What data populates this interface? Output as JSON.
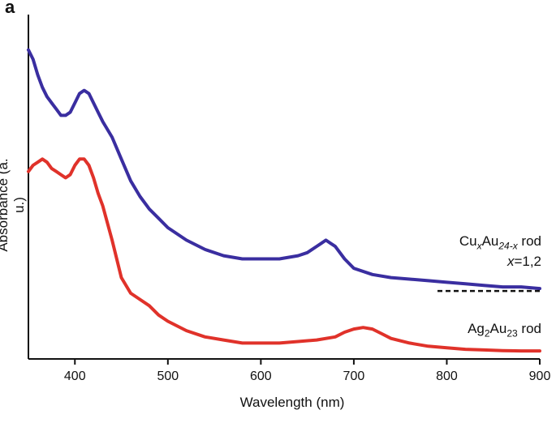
{
  "panel_label": "a",
  "chart_data": {
    "type": "line",
    "xlabel": "Wavelength (nm)",
    "ylabel": "Absorbance (a. u.)",
    "xlim": [
      350,
      900
    ],
    "xticks": [
      400,
      500,
      600,
      700,
      800,
      900
    ],
    "ylim": [
      0,
      1
    ],
    "y_ticks_shown": false,
    "grid": false,
    "series": [
      {
        "name": "CuxAu24-x rod x=1,2",
        "label_parts": {
          "a": "Cu",
          "b": "x",
          "c": "Au",
          "d": "24-x",
          "e": " rod",
          "line2_var": "x",
          "line2_rest": "=1,2"
        },
        "color": "#3a2ea0",
        "x": [
          350,
          355,
          360,
          365,
          370,
          375,
          380,
          385,
          390,
          395,
          400,
          405,
          410,
          415,
          420,
          425,
          430,
          440,
          450,
          460,
          470,
          480,
          490,
          500,
          520,
          540,
          560,
          580,
          600,
          620,
          640,
          650,
          660,
          665,
          670,
          675,
          680,
          690,
          700,
          720,
          740,
          760,
          780,
          800,
          820,
          840,
          860,
          880,
          900
        ],
        "y": [
          0.97,
          0.94,
          0.89,
          0.85,
          0.82,
          0.8,
          0.78,
          0.76,
          0.76,
          0.77,
          0.8,
          0.83,
          0.84,
          0.83,
          0.8,
          0.77,
          0.74,
          0.69,
          0.62,
          0.55,
          0.5,
          0.46,
          0.43,
          0.4,
          0.36,
          0.33,
          0.31,
          0.3,
          0.3,
          0.3,
          0.31,
          0.32,
          0.34,
          0.35,
          0.36,
          0.35,
          0.34,
          0.3,
          0.27,
          0.25,
          0.24,
          0.235,
          0.23,
          0.225,
          0.22,
          0.215,
          0.21,
          0.21,
          0.205
        ]
      },
      {
        "name": "Ag2Au23 rod",
        "label_parts": {
          "a": "Ag",
          "b": "2",
          "c": "Au",
          "d": "23",
          "e": " rod"
        },
        "color": "#e0322a",
        "x": [
          350,
          355,
          360,
          365,
          370,
          375,
          380,
          385,
          390,
          395,
          400,
          405,
          410,
          415,
          420,
          425,
          430,
          440,
          450,
          460,
          470,
          480,
          490,
          500,
          520,
          540,
          560,
          580,
          600,
          620,
          640,
          660,
          680,
          690,
          700,
          710,
          720,
          730,
          740,
          760,
          780,
          800,
          820,
          840,
          860,
          880,
          900
        ],
        "y": [
          0.58,
          0.6,
          0.61,
          0.62,
          0.61,
          0.59,
          0.58,
          0.57,
          0.56,
          0.57,
          0.6,
          0.62,
          0.62,
          0.6,
          0.56,
          0.51,
          0.47,
          0.36,
          0.24,
          0.19,
          0.17,
          0.15,
          0.12,
          0.1,
          0.07,
          0.05,
          0.04,
          0.03,
          0.03,
          0.03,
          0.035,
          0.04,
          0.05,
          0.065,
          0.075,
          0.08,
          0.075,
          0.06,
          0.045,
          0.03,
          0.02,
          0.015,
          0.01,
          0.008,
          0.006,
          0.005,
          0.005
        ]
      }
    ],
    "baseline": {
      "style": "dashed",
      "x_from": 790,
      "x_to": 900,
      "series": "CuxAu24-x rod x=1,2"
    }
  }
}
